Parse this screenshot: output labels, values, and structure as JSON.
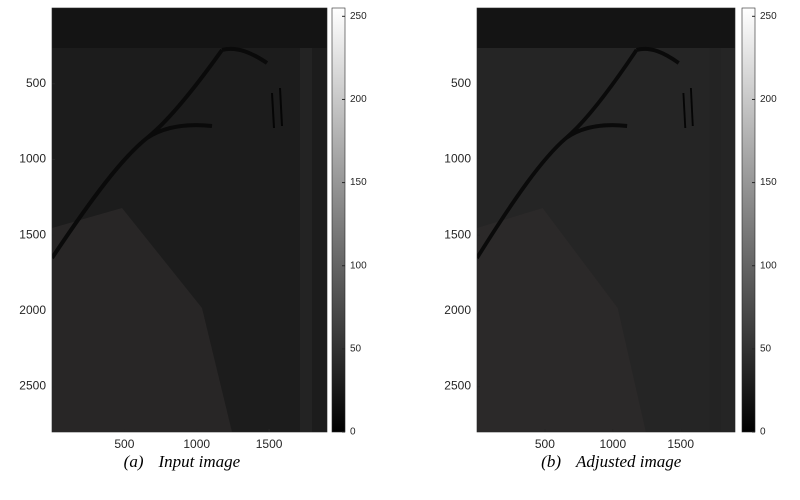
{
  "chart_data": [
    {
      "type": "image",
      "label": "(a)",
      "caption": "Input image",
      "tone": "#1c1c1c",
      "xlim": [
        0,
        1900
      ],
      "ylim": [
        0,
        2800
      ],
      "y_reversed": true,
      "xticks": [
        500,
        1000,
        1500
      ],
      "yticks": [
        500,
        1000,
        1500,
        2000,
        2500
      ],
      "colorbar": {
        "clim": [
          0,
          255
        ],
        "ticks": [
          0,
          50,
          100,
          150,
          200,
          250
        ]
      }
    },
    {
      "type": "image",
      "label": "(b)",
      "caption": "Adjusted image",
      "tone": "#252525",
      "xlim": [
        0,
        1900
      ],
      "ylim": [
        0,
        2800
      ],
      "y_reversed": true,
      "xticks": [
        500,
        1000,
        1500
      ],
      "yticks": [
        500,
        1000,
        1500,
        2000,
        2500
      ],
      "colorbar": {
        "clim": [
          0,
          255
        ],
        "ticks": [
          0,
          50,
          100,
          150,
          200,
          250
        ]
      }
    }
  ]
}
